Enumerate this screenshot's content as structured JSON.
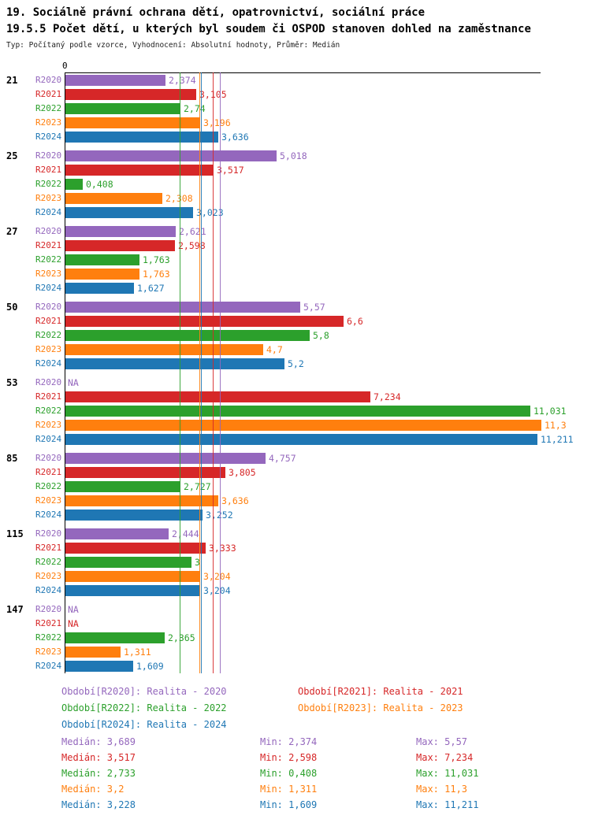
{
  "header": {
    "title_line1": "19. Sociálně právní ochrana dětí, opatrovnictví, sociální práce",
    "title_line2": "19.5.5 Počet dětí, u kterých byl soudem či OSPOD stanoven dohled na zaměstnance",
    "subtitle": "Typ: Počítaný podle vzorce, Vyhodnocení: Absolutní hodnoty, Průměr: Medián"
  },
  "chart_data": {
    "type": "bar",
    "orientation": "horizontal",
    "axis_zero_label": "0",
    "xlim": [
      0,
      11.3
    ],
    "grid": false,
    "legend_position": "bottom",
    "series_labels": [
      "R2020",
      "R2021",
      "R2022",
      "R2023",
      "R2024"
    ],
    "series_colors": [
      "#9467bd",
      "#d62728",
      "#2ca02c",
      "#ff7f0e",
      "#1f77b4"
    ],
    "groups": [
      {
        "name": "21",
        "values": [
          2.374,
          3.105,
          2.74,
          3.196,
          3.636
        ],
        "labels": [
          "2,374",
          "3,105",
          "2,74",
          "3,196",
          "3,636"
        ]
      },
      {
        "name": "25",
        "values": [
          5.018,
          3.517,
          0.408,
          2.308,
          3.023
        ],
        "labels": [
          "5,018",
          "3,517",
          "0,408",
          "2,308",
          "3,023"
        ]
      },
      {
        "name": "27",
        "values": [
          2.621,
          2.598,
          1.763,
          1.763,
          1.627
        ],
        "labels": [
          "2,621",
          "2,598",
          "1,763",
          "1,763",
          "1,627"
        ]
      },
      {
        "name": "50",
        "values": [
          5.57,
          6.6,
          5.8,
          4.7,
          5.2
        ],
        "labels": [
          "5,57",
          "6,6",
          "5,8",
          "4,7",
          "5,2"
        ]
      },
      {
        "name": "53",
        "values": [
          null,
          7.234,
          11.031,
          11.3,
          11.211
        ],
        "labels": [
          "NA",
          "7,234",
          "11,031",
          "11,3",
          "11,211"
        ]
      },
      {
        "name": "85",
        "values": [
          4.757,
          3.805,
          2.727,
          3.636,
          3.252
        ],
        "labels": [
          "4,757",
          "3,805",
          "2,727",
          "3,636",
          "3,252"
        ]
      },
      {
        "name": "115",
        "values": [
          2.444,
          3.333,
          3.0,
          3.204,
          3.204
        ],
        "labels": [
          "2,444",
          "3,333",
          "3",
          "3,204",
          "3,204"
        ]
      },
      {
        "name": "147",
        "values": [
          null,
          null,
          2.365,
          1.311,
          1.609
        ],
        "labels": [
          "NA",
          "NA",
          "2,365",
          "1,311",
          "1,609"
        ]
      }
    ],
    "median_lines": [
      3.689,
      3.517,
      2.733,
      3.2,
      3.228
    ],
    "legend": [
      {
        "label": "Období[R2020]: Realita - 2020",
        "color": "#9467bd"
      },
      {
        "label": "Období[R2021]: Realita - 2021",
        "color": "#d62728"
      },
      {
        "label": "Období[R2022]: Realita - 2022",
        "color": "#2ca02c"
      },
      {
        "label": "Období[R2023]: Realita - 2023",
        "color": "#ff7f0e"
      },
      {
        "label": "Období[R2024]: Realita - 2024",
        "color": "#1f77b4"
      }
    ],
    "stats": [
      {
        "median": "Medián: 3,689",
        "min": "Min: 2,374",
        "max": "Max: 5,57",
        "color": "#9467bd"
      },
      {
        "median": "Medián: 3,517",
        "min": "Min: 2,598",
        "max": "Max: 7,234",
        "color": "#d62728"
      },
      {
        "median": "Medián: 2,733",
        "min": "Min: 0,408",
        "max": "Max: 11,031",
        "color": "#2ca02c"
      },
      {
        "median": "Medián: 3,2",
        "min": "Min: 1,311",
        "max": "Max: 11,3",
        "color": "#ff7f0e"
      },
      {
        "median": "Medián: 3,228",
        "min": "Min: 1,609",
        "max": "Max: 11,211",
        "color": "#1f77b4"
      }
    ]
  }
}
